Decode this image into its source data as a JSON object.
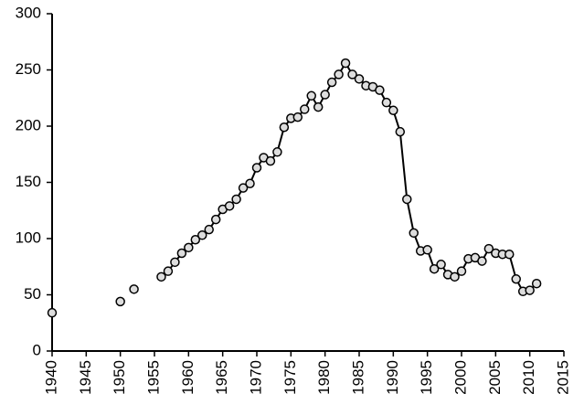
{
  "chart_data": {
    "type": "line",
    "x": [
      1940,
      1941,
      1950,
      1951,
      1952,
      1953,
      1956,
      1957,
      1958,
      1959,
      1960,
      1961,
      1962,
      1963,
      1964,
      1965,
      1966,
      1967,
      1968,
      1969,
      1970,
      1971,
      1972,
      1973,
      1974,
      1975,
      1976,
      1977,
      1978,
      1979,
      1980,
      1981,
      1982,
      1983,
      1984,
      1985,
      1986,
      1987,
      1988,
      1989,
      1990,
      1991,
      1992,
      1993,
      1994,
      1995,
      1996,
      1997,
      1998,
      1999,
      2000,
      2001,
      2002,
      2003,
      2004,
      2005,
      2006,
      2007,
      2008,
      2009,
      2010,
      2011
    ],
    "series": [
      {
        "color": "#000000",
        "values": [
          34,
          null,
          44,
          null,
          55,
          null,
          66,
          71,
          79,
          87,
          92,
          99,
          103,
          108,
          117,
          126,
          129,
          135,
          145,
          149,
          163,
          172,
          169,
          177,
          199,
          207,
          208,
          215,
          227,
          217,
          228,
          239,
          246,
          256,
          246,
          242,
          236,
          235,
          232,
          221,
          214,
          195,
          135,
          105,
          89,
          90,
          73,
          77,
          68,
          66,
          71,
          82,
          83,
          80,
          91,
          87,
          86,
          86,
          64,
          53,
          54,
          60
        ]
      }
    ],
    "xlim": [
      1940,
      2015
    ],
    "xticks": [
      1940,
      1945,
      1950,
      1955,
      1960,
      1965,
      1970,
      1975,
      1980,
      1985,
      1990,
      1995,
      2000,
      2005,
      2010,
      2015
    ],
    "ylim": [
      0,
      300
    ],
    "yticks": [
      0,
      50,
      100,
      150,
      200,
      250,
      300
    ],
    "grid": false
  }
}
